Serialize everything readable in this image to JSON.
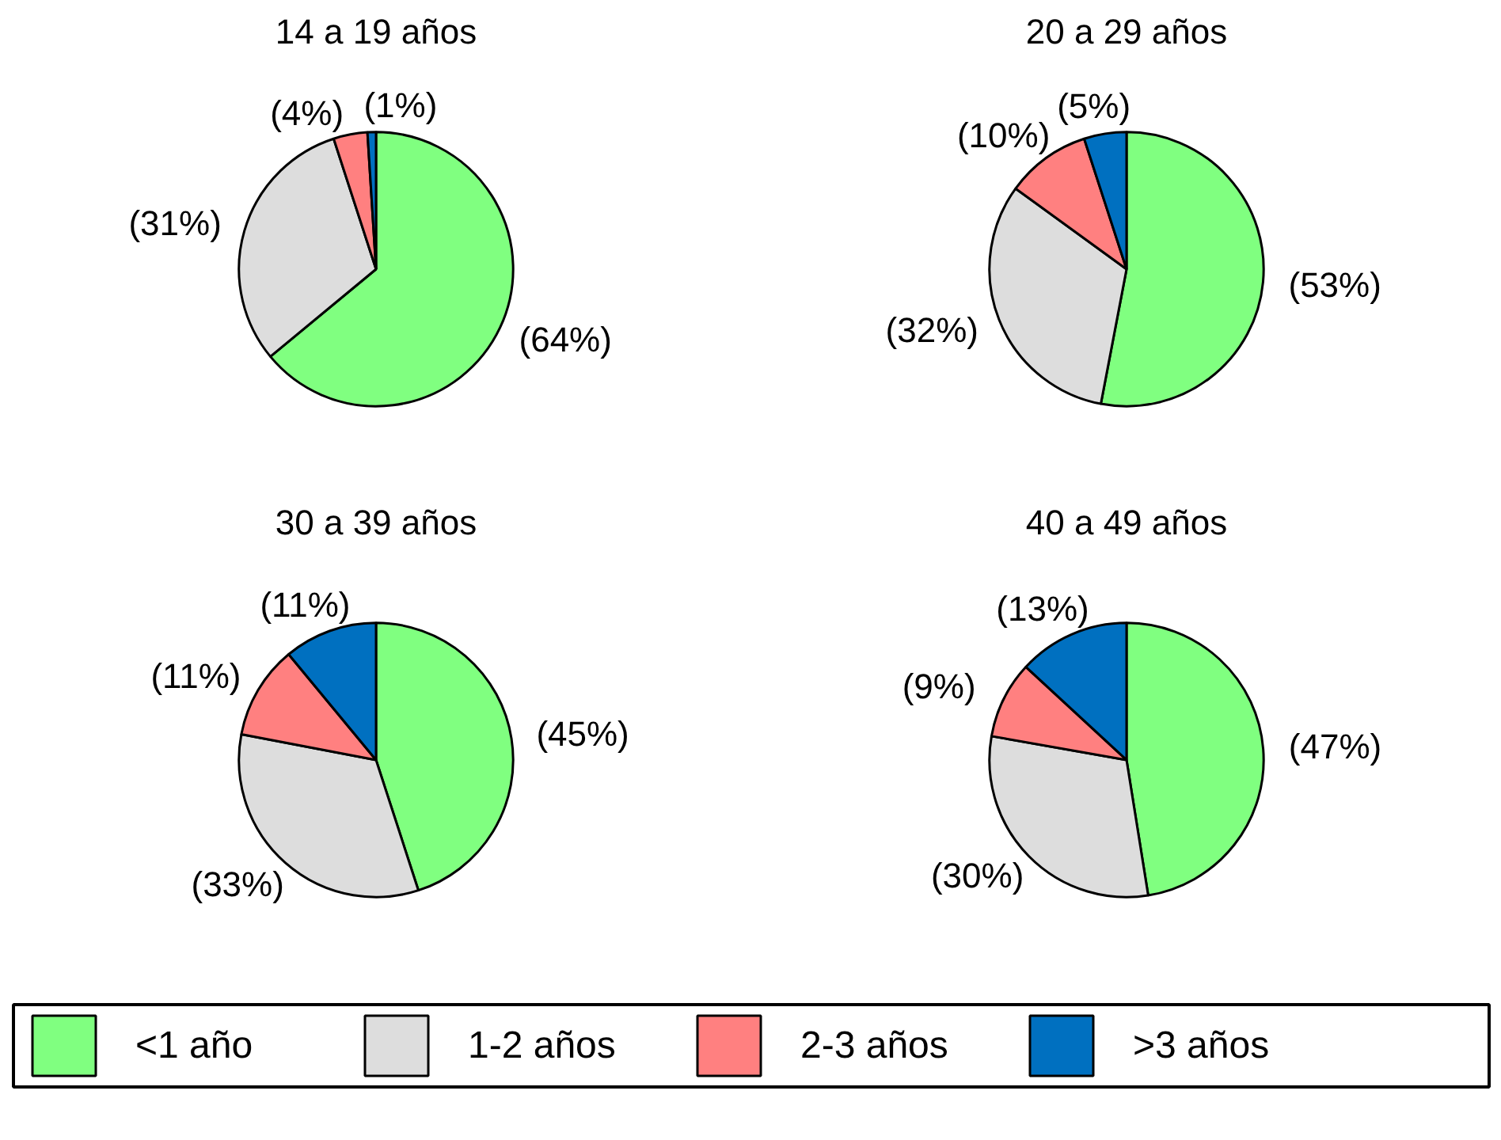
{
  "chart_data": [
    {
      "type": "pie",
      "title": "14 a 19 años",
      "categories": [
        "<1 año",
        "1-2 años",
        "2-3 años",
        ">3 años"
      ],
      "values": [
        64,
        31,
        4,
        1
      ],
      "colors": [
        "#80ff80",
        "#dddddd",
        "#ff8080",
        "#0070c0"
      ],
      "value_labels": [
        "(64%)",
        "(31%)",
        "(4%)",
        "(1%)"
      ],
      "legend": "bottom"
    },
    {
      "type": "pie",
      "title": "20 a 29 años",
      "categories": [
        null,
        null,
        null,
        null
      ],
      "values": [
        53,
        32,
        10,
        5
      ],
      "colors": [
        "#80ff80",
        "#dddddd",
        "#ff8080",
        "#0070c0"
      ],
      "value_labels": [
        "(53%)",
        "(32%)",
        "(10%)",
        "(5%)"
      ]
    },
    {
      "type": "pie",
      "title": "30 a 39 años",
      "categories": [
        null,
        null,
        null,
        null
      ],
      "values": [
        45,
        33,
        11,
        11
      ],
      "colors": [
        "#80ff80",
        "#dddddd",
        "#ff8080",
        "#0070c0"
      ],
      "value_labels": [
        "(45%)",
        "(33%)",
        "(11%)",
        "(11%)"
      ]
    },
    {
      "type": "pie",
      "title": "40 a 49 años",
      "categories": [
        null,
        null,
        null,
        null
      ],
      "values": [
        47,
        30,
        9,
        13
      ],
      "colors": [
        "#80ff80",
        "#dddddd",
        "#ff8080",
        "#0070c0"
      ],
      "value_labels": [
        "(47%)",
        "(30%)",
        "(9%)",
        "(13%)"
      ]
    }
  ]
}
